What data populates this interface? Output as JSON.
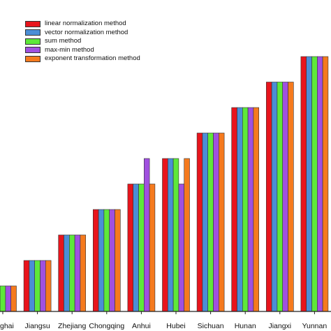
{
  "chart_data": {
    "type": "bar",
    "categories": [
      "Qinghai",
      "Jiangsu",
      "Zhejiang",
      "Chongqing",
      "Anhui",
      "Hubei",
      "Sichuan",
      "Hunan",
      "Jiangxi",
      "Yunnan"
    ],
    "category_labels_shown": [
      "ghai",
      "Jiangsu",
      "Zhejiang",
      "Chongqing",
      "Anhui",
      "Hubei",
      "Sichuan",
      "Hunan",
      "Jiangxi",
      "Yunnan"
    ],
    "series": [
      {
        "name": "linear normalization method",
        "color": "#e8141c",
        "values": [
          1,
          2,
          3,
          4,
          5,
          6,
          7,
          8,
          9,
          10
        ]
      },
      {
        "name": "vector normalization method",
        "color": "#4b8ed6",
        "values": [
          1,
          2,
          3,
          4,
          5,
          6,
          7,
          8,
          9,
          10
        ]
      },
      {
        "name": "sum method",
        "color": "#5ee83a",
        "values": [
          1,
          2,
          3,
          4,
          5,
          6,
          7,
          8,
          9,
          10
        ]
      },
      {
        "name": "max-min method",
        "color": "#a050e0",
        "values": [
          1,
          2,
          3,
          4,
          6,
          5,
          7,
          8,
          9,
          10
        ]
      },
      {
        "name": "exponent transformation method",
        "color": "#f57a1e",
        "values": [
          1,
          2,
          3,
          4,
          5,
          6,
          7,
          8,
          9,
          10
        ]
      }
    ],
    "title": "",
    "xlabel": "",
    "ylabel": "",
    "ylim": [
      0,
      10
    ],
    "grid": false,
    "legend_position": "top-left"
  }
}
